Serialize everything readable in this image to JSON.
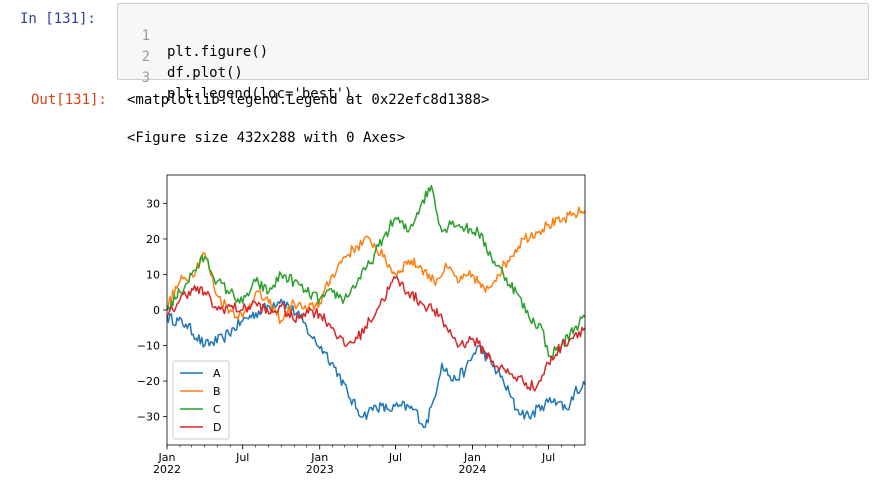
{
  "cell": {
    "in_prompt": "In  [131]:",
    "out_prompt": "Out[131]:",
    "code_lines": [
      {
        "num": "1",
        "text": "plt.figure()"
      },
      {
        "num": "2",
        "text": "df.plot()"
      },
      {
        "num": "3",
        "text": "plt.legend(loc='best')"
      }
    ],
    "outputs": [
      "<matplotlib.legend.Legend at 0x22efc8d1388>",
      "<Figure size 432x288 with 0 Axes>"
    ]
  },
  "chart_data": {
    "type": "line",
    "x_start": "2022-01-01",
    "x_end": "2024-09-26",
    "ylim": [
      -38,
      38
    ],
    "yticks": [
      -30,
      -20,
      -10,
      0,
      10,
      20,
      30
    ],
    "xtick_labels": [
      {
        "date": "2022-01-01",
        "label": "Jan\n2022"
      },
      {
        "date": "2022-07-01",
        "label": "Jul"
      },
      {
        "date": "2023-01-01",
        "label": "Jan\n2023"
      },
      {
        "date": "2023-07-01",
        "label": "Jul"
      },
      {
        "date": "2024-01-01",
        "label": "Jan\n2024"
      },
      {
        "date": "2024-07-01",
        "label": "Jul"
      }
    ],
    "legend_loc": "lower-left",
    "grid": false,
    "series": [
      {
        "name": "A",
        "color": "#1f77b4",
        "points": [
          [
            "2022-01-01",
            -2
          ],
          [
            "2022-02-15",
            -4
          ],
          [
            "2022-04-01",
            -10
          ],
          [
            "2022-05-15",
            -8
          ],
          [
            "2022-07-01",
            -3
          ],
          [
            "2022-08-15",
            0
          ],
          [
            "2022-10-01",
            3
          ],
          [
            "2022-11-15",
            -2
          ],
          [
            "2022-12-15",
            -8
          ],
          [
            "2023-01-15",
            -12
          ],
          [
            "2023-02-15",
            -18
          ],
          [
            "2023-03-15",
            -25
          ],
          [
            "2023-04-15",
            -30
          ],
          [
            "2023-05-15",
            -27
          ],
          [
            "2023-06-15",
            -28
          ],
          [
            "2023-07-15",
            -27
          ],
          [
            "2023-08-15",
            -28
          ],
          [
            "2023-09-10",
            -33
          ],
          [
            "2023-10-01",
            -25
          ],
          [
            "2023-10-20",
            -15
          ],
          [
            "2023-11-15",
            -20
          ],
          [
            "2023-12-15",
            -17
          ],
          [
            "2024-01-15",
            -10
          ],
          [
            "2024-02-15",
            -15
          ],
          [
            "2024-03-15",
            -20
          ],
          [
            "2024-04-15",
            -28
          ],
          [
            "2024-05-15",
            -30
          ],
          [
            "2024-06-15",
            -27
          ],
          [
            "2024-07-15",
            -25
          ],
          [
            "2024-08-15",
            -28
          ],
          [
            "2024-09-01",
            -23
          ],
          [
            "2024-09-26",
            -21
          ]
        ]
      },
      {
        "name": "B",
        "color": "#ff7f0e",
        "points": [
          [
            "2022-01-01",
            1
          ],
          [
            "2022-02-01",
            8
          ],
          [
            "2022-03-01",
            10
          ],
          [
            "2022-04-01",
            16
          ],
          [
            "2022-05-01",
            4
          ],
          [
            "2022-06-01",
            0
          ],
          [
            "2022-07-01",
            -2
          ],
          [
            "2022-08-01",
            5
          ],
          [
            "2022-09-01",
            2
          ],
          [
            "2022-10-01",
            -3
          ],
          [
            "2022-11-01",
            2
          ],
          [
            "2022-12-01",
            0
          ],
          [
            "2023-01-01",
            2
          ],
          [
            "2023-02-01",
            10
          ],
          [
            "2023-03-01",
            15
          ],
          [
            "2023-04-01",
            18
          ],
          [
            "2023-05-01",
            20
          ],
          [
            "2023-06-01",
            15
          ],
          [
            "2023-07-01",
            10
          ],
          [
            "2023-08-01",
            14
          ],
          [
            "2023-09-01",
            12
          ],
          [
            "2023-10-01",
            8
          ],
          [
            "2023-11-01",
            12
          ],
          [
            "2023-12-01",
            8
          ],
          [
            "2024-01-01",
            10
          ],
          [
            "2024-02-01",
            5
          ],
          [
            "2024-03-01",
            10
          ],
          [
            "2024-04-01",
            15
          ],
          [
            "2024-05-01",
            20
          ],
          [
            "2024-06-01",
            22
          ],
          [
            "2024-07-01",
            24
          ],
          [
            "2024-08-01",
            25
          ],
          [
            "2024-09-01",
            27
          ],
          [
            "2024-09-26",
            28
          ]
        ]
      },
      {
        "name": "C",
        "color": "#2ca02c",
        "points": [
          [
            "2022-01-01",
            0
          ],
          [
            "2022-02-01",
            5
          ],
          [
            "2022-03-01",
            10
          ],
          [
            "2022-04-01",
            15
          ],
          [
            "2022-05-01",
            8
          ],
          [
            "2022-06-01",
            5
          ],
          [
            "2022-07-01",
            2
          ],
          [
            "2022-08-01",
            8
          ],
          [
            "2022-09-01",
            5
          ],
          [
            "2022-10-01",
            10
          ],
          [
            "2022-11-01",
            8
          ],
          [
            "2022-12-01",
            5
          ],
          [
            "2023-01-01",
            3
          ],
          [
            "2023-02-01",
            5
          ],
          [
            "2023-03-01",
            3
          ],
          [
            "2023-04-01",
            8
          ],
          [
            "2023-05-01",
            13
          ],
          [
            "2023-06-01",
            20
          ],
          [
            "2023-07-01",
            26
          ],
          [
            "2023-08-01",
            22
          ],
          [
            "2023-09-01",
            30
          ],
          [
            "2023-09-25",
            35
          ],
          [
            "2023-10-20",
            22
          ],
          [
            "2023-11-15",
            25
          ],
          [
            "2023-12-15",
            23
          ],
          [
            "2024-01-15",
            22
          ],
          [
            "2024-02-15",
            15
          ],
          [
            "2024-03-15",
            10
          ],
          [
            "2024-04-15",
            5
          ],
          [
            "2024-05-15",
            -2
          ],
          [
            "2024-06-15",
            -5
          ],
          [
            "2024-07-01",
            -13
          ],
          [
            "2024-08-01",
            -10
          ],
          [
            "2024-09-01",
            -5
          ],
          [
            "2024-09-26",
            -2
          ]
        ]
      },
      {
        "name": "D",
        "color": "#d62728",
        "points": [
          [
            "2022-01-01",
            -2
          ],
          [
            "2022-02-01",
            3
          ],
          [
            "2022-03-01",
            6
          ],
          [
            "2022-04-01",
            5
          ],
          [
            "2022-05-01",
            0
          ],
          [
            "2022-06-01",
            1
          ],
          [
            "2022-07-01",
            0
          ],
          [
            "2022-08-01",
            2
          ],
          [
            "2022-09-01",
            -1
          ],
          [
            "2022-10-01",
            1
          ],
          [
            "2022-11-01",
            -3
          ],
          [
            "2022-12-01",
            0
          ],
          [
            "2023-01-01",
            -1
          ],
          [
            "2023-02-01",
            -5
          ],
          [
            "2023-03-01",
            -10
          ],
          [
            "2023-04-01",
            -8
          ],
          [
            "2023-05-01",
            -3
          ],
          [
            "2023-06-01",
            3
          ],
          [
            "2023-07-01",
            9
          ],
          [
            "2023-08-01",
            5
          ],
          [
            "2023-09-01",
            2
          ],
          [
            "2023-10-01",
            0
          ],
          [
            "2023-11-01",
            -5
          ],
          [
            "2023-12-01",
            -10
          ],
          [
            "2024-01-01",
            -8
          ],
          [
            "2024-02-01",
            -12
          ],
          [
            "2024-03-01",
            -16
          ],
          [
            "2024-04-01",
            -18
          ],
          [
            "2024-05-01",
            -20
          ],
          [
            "2024-06-01",
            -22
          ],
          [
            "2024-07-01",
            -15
          ],
          [
            "2024-08-01",
            -10
          ],
          [
            "2024-09-01",
            -7
          ],
          [
            "2024-09-26",
            -5
          ]
        ]
      }
    ]
  }
}
